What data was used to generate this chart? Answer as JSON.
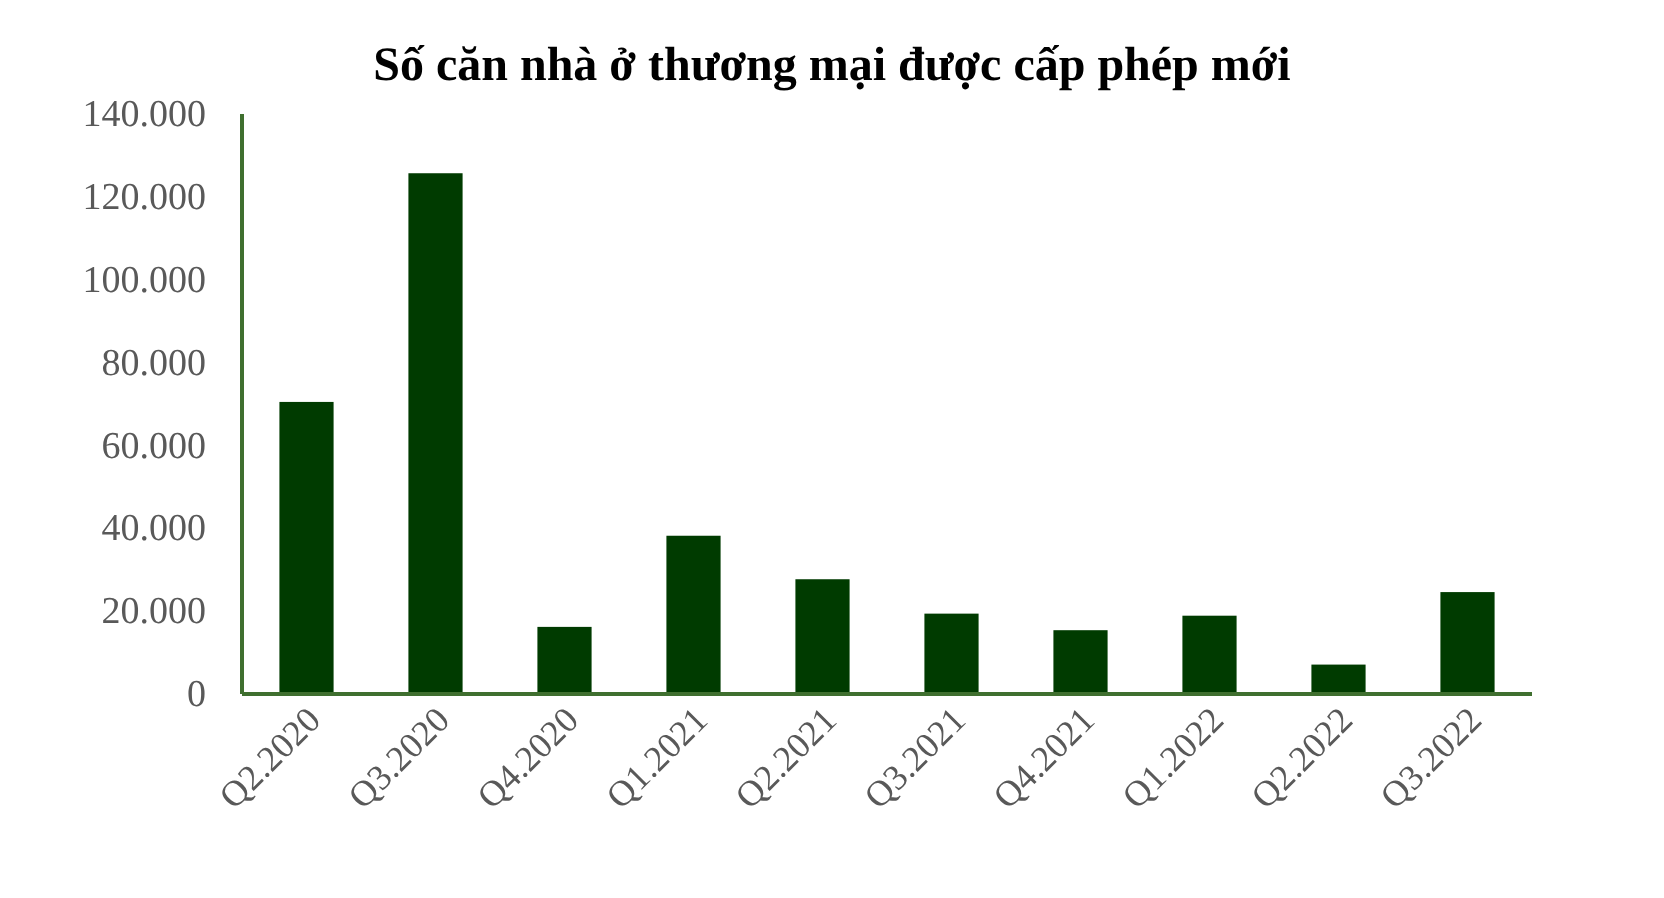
{
  "chart_data": {
    "type": "bar",
    "title": "Số căn nhà ở thương mại được cấp phép mới",
    "categories": [
      "Q2.2020",
      "Q3.2020",
      "Q4.2020",
      "Q1.2021",
      "Q2.2021",
      "Q3.2021",
      "Q4.2021",
      "Q1.2022",
      "Q2.2022",
      "Q3.2022"
    ],
    "values": [
      70500,
      125700,
      16200,
      38200,
      27700,
      19400,
      15400,
      18900,
      7100,
      24600
    ],
    "color": "#003b00",
    "ylim": [
      0,
      140000
    ],
    "yticks": [
      {
        "value": 0,
        "label": "0"
      },
      {
        "value": 20000,
        "label": "20.000"
      },
      {
        "value": 40000,
        "label": "40.000"
      },
      {
        "value": 60000,
        "label": "60.000"
      },
      {
        "value": 80000,
        "label": "80.000"
      },
      {
        "value": 100000,
        "label": "100.000"
      },
      {
        "value": 120000,
        "label": "120.000"
      },
      {
        "value": 140000,
        "label": "140.000"
      }
    ],
    "grid": false
  }
}
